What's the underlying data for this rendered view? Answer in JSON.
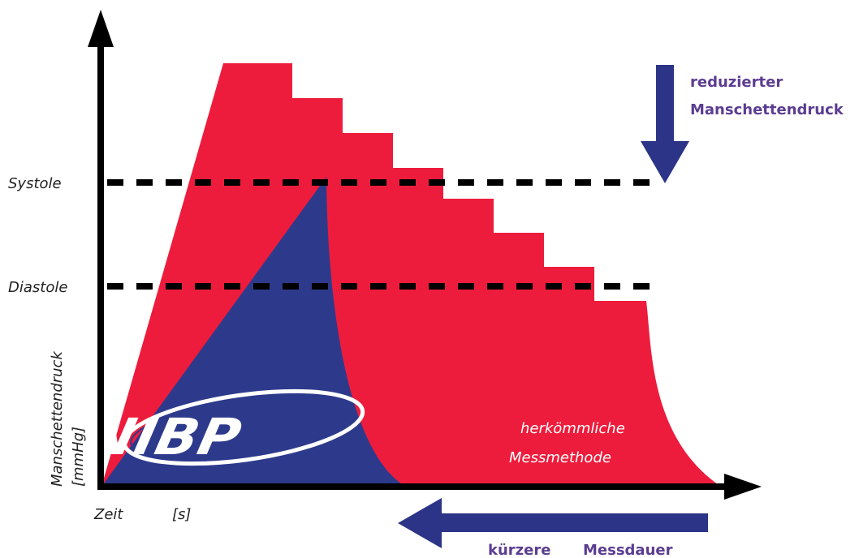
{
  "labels": {
    "systole": "Systole",
    "diastole": "Diastole",
    "y_axis_line1": "Manschettendruck",
    "y_axis_line2": "[mmHg]",
    "x_axis_word": "Zeit",
    "x_axis_unit": "[s]",
    "conventional_line1": "herkömmliche",
    "conventional_line2": "Messmethode",
    "reduced_line1": "reduzierter",
    "reduced_line2": "Manschettendruck",
    "shorter_word1": "kürzere",
    "shorter_word2": "Messdauer"
  },
  "logo": {
    "text": "iNIBP"
  },
  "colors": {
    "conventional_red": "#ee1c3c",
    "inibp_blue": "#2d3a8c",
    "arrow_blue": "#2b3487",
    "label_purple": "#5b3d91",
    "axis_black": "#000000"
  }
}
